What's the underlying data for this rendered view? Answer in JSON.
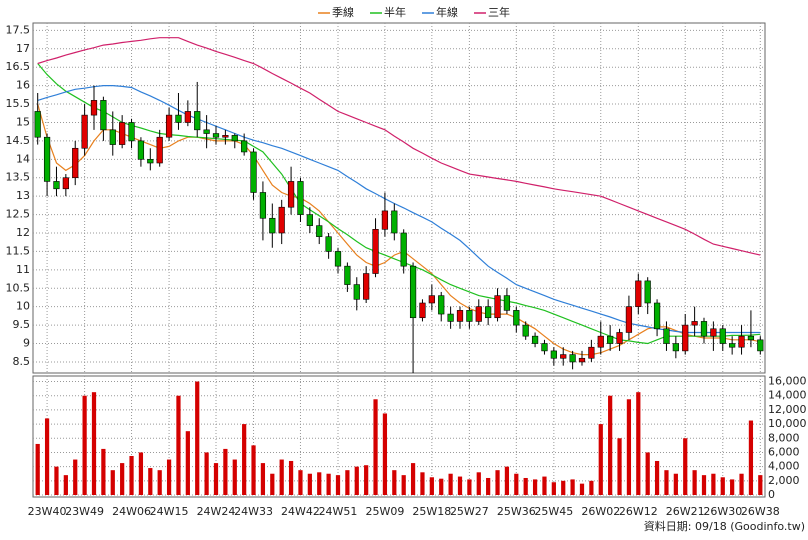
{
  "chart_data": {
    "type": "candlestick",
    "footer": "資料日期: 09/18 (Goodinfo.tw)",
    "categories": [
      null,
      "23W40",
      null,
      null,
      null,
      "23W49",
      null,
      null,
      null,
      null,
      "24W06",
      null,
      null,
      null,
      "24W15",
      null,
      null,
      null,
      null,
      "24W24",
      null,
      null,
      null,
      "24W33",
      null,
      null,
      null,
      null,
      "24W42",
      null,
      null,
      null,
      "24W51",
      null,
      null,
      null,
      null,
      "25W09",
      null,
      null,
      null,
      null,
      "25W18",
      null,
      null,
      null,
      "25W27",
      null,
      null,
      null,
      null,
      "25W36",
      null,
      null,
      null,
      "25W45",
      null,
      null,
      null,
      null,
      "26W02",
      null,
      null,
      null,
      "26W12",
      null,
      null,
      null,
      null,
      "26W21",
      null,
      null,
      null,
      "26W30",
      null,
      null,
      null,
      "26W38"
    ],
    "candles": [
      [
        15.3,
        15.8,
        14.4,
        14.6
      ],
      [
        14.6,
        14.7,
        13.0,
        13.4
      ],
      [
        13.4,
        13.8,
        13.0,
        13.2
      ],
      [
        13.2,
        13.6,
        13.0,
        13.5
      ],
      [
        13.5,
        14.5,
        13.3,
        14.3
      ],
      [
        14.3,
        15.5,
        14.1,
        15.2
      ],
      [
        15.2,
        16.0,
        14.8,
        15.6
      ],
      [
        15.6,
        15.7,
        14.5,
        14.8
      ],
      [
        14.8,
        15.3,
        14.1,
        14.4
      ],
      [
        14.4,
        15.2,
        14.3,
        15.0
      ],
      [
        15.0,
        15.1,
        14.3,
        14.5
      ],
      [
        14.5,
        14.6,
        13.8,
        14.0
      ],
      [
        14.0,
        14.3,
        13.7,
        13.9
      ],
      [
        13.9,
        14.8,
        13.8,
        14.6
      ],
      [
        14.6,
        15.4,
        14.5,
        15.2
      ],
      [
        15.2,
        15.8,
        14.8,
        15.0
      ],
      [
        15.0,
        15.6,
        14.9,
        15.3
      ],
      [
        15.3,
        16.1,
        14.6,
        14.8
      ],
      [
        14.8,
        15.2,
        14.3,
        14.7
      ],
      [
        14.7,
        14.9,
        14.4,
        14.6
      ],
      [
        14.6,
        14.8,
        14.4,
        14.65
      ],
      [
        14.65,
        14.7,
        14.3,
        14.5
      ],
      [
        14.5,
        14.7,
        14.1,
        14.2
      ],
      [
        14.2,
        14.3,
        12.9,
        13.1
      ],
      [
        13.1,
        13.4,
        11.8,
        12.4
      ],
      [
        12.4,
        12.8,
        11.6,
        12.0
      ],
      [
        12.0,
        12.9,
        11.7,
        12.7
      ],
      [
        12.7,
        13.8,
        12.5,
        13.4
      ],
      [
        13.4,
        13.5,
        12.3,
        12.5
      ],
      [
        12.5,
        12.7,
        12.0,
        12.2
      ],
      [
        12.2,
        12.4,
        11.7,
        11.9
      ],
      [
        11.9,
        12.0,
        11.3,
        11.5
      ],
      [
        11.5,
        11.6,
        10.9,
        11.1
      ],
      [
        11.1,
        11.2,
        10.4,
        10.6
      ],
      [
        10.6,
        10.8,
        9.9,
        10.2
      ],
      [
        10.2,
        11.1,
        10.1,
        10.9
      ],
      [
        10.9,
        12.4,
        10.8,
        12.1
      ],
      [
        12.1,
        13.1,
        11.9,
        12.6
      ],
      [
        12.6,
        12.8,
        11.8,
        12.0
      ],
      [
        12.0,
        12.1,
        10.9,
        11.1
      ],
      [
        11.1,
        11.2,
        8.2,
        9.7
      ],
      [
        9.7,
        10.2,
        9.6,
        10.1
      ],
      [
        10.1,
        10.6,
        9.9,
        10.3
      ],
      [
        10.3,
        10.4,
        9.6,
        9.8
      ],
      [
        9.8,
        10.0,
        9.4,
        9.6
      ],
      [
        9.6,
        10.0,
        9.4,
        9.9
      ],
      [
        9.9,
        10.0,
        9.4,
        9.6
      ],
      [
        9.6,
        10.2,
        9.5,
        10.0
      ],
      [
        10.0,
        10.2,
        9.5,
        9.7
      ],
      [
        9.7,
        10.5,
        9.6,
        10.3
      ],
      [
        10.3,
        10.5,
        9.8,
        9.9
      ],
      [
        9.9,
        10.0,
        9.3,
        9.5
      ],
      [
        9.5,
        9.6,
        9.1,
        9.2
      ],
      [
        9.2,
        9.3,
        8.9,
        9.0
      ],
      [
        9.0,
        9.1,
        8.7,
        8.8
      ],
      [
        8.8,
        8.9,
        8.4,
        8.6
      ],
      [
        8.6,
        8.9,
        8.4,
        8.7
      ],
      [
        8.7,
        8.8,
        8.3,
        8.5
      ],
      [
        8.5,
        8.8,
        8.4,
        8.6
      ],
      [
        8.6,
        9.1,
        8.5,
        8.9
      ],
      [
        8.9,
        9.6,
        8.7,
        9.2
      ],
      [
        9.2,
        9.5,
        8.8,
        9.0
      ],
      [
        9.0,
        9.4,
        8.8,
        9.3
      ],
      [
        9.3,
        10.3,
        9.1,
        10.0
      ],
      [
        10.0,
        10.9,
        9.8,
        10.7
      ],
      [
        10.7,
        10.8,
        9.8,
        10.1
      ],
      [
        10.1,
        10.2,
        9.2,
        9.4
      ],
      [
        9.4,
        9.6,
        8.8,
        9.0
      ],
      [
        9.0,
        9.2,
        8.6,
        8.8
      ],
      [
        8.8,
        9.8,
        8.7,
        9.5
      ],
      [
        9.5,
        10.0,
        9.2,
        9.6
      ],
      [
        9.6,
        9.7,
        9.0,
        9.2
      ],
      [
        9.2,
        9.6,
        8.8,
        9.4
      ],
      [
        9.4,
        9.5,
        8.8,
        9.0
      ],
      [
        9.0,
        9.2,
        8.7,
        8.9
      ],
      [
        8.9,
        9.5,
        8.7,
        9.2
      ],
      [
        9.2,
        9.9,
        8.9,
        9.1
      ],
      [
        9.1,
        9.2,
        8.7,
        8.8
      ]
    ],
    "up_color": "#e00000",
    "down_color": "#00b000",
    "series": [
      {
        "name": "季線",
        "color": "#e8801e",
        "values": [
          15.5,
          14.6,
          13.9,
          13.7,
          13.85,
          14.1,
          14.5,
          14.8,
          14.8,
          14.7,
          14.6,
          14.5,
          14.4,
          14.3,
          14.35,
          14.5,
          14.6,
          14.6,
          14.55,
          14.5,
          14.5,
          14.5,
          14.4,
          14.1,
          13.7,
          13.3,
          13.1,
          13.0,
          12.95,
          12.8,
          12.6,
          12.3,
          12.0,
          11.7,
          11.4,
          11.2,
          11.1,
          11.2,
          11.4,
          11.5,
          11.3,
          11.1,
          10.9,
          10.6,
          10.3,
          10.1,
          9.95,
          9.85,
          9.8,
          9.8,
          9.8,
          9.7,
          9.55,
          9.4,
          9.2,
          9.0,
          8.85,
          8.75,
          8.7,
          8.7,
          8.75,
          8.85,
          8.95,
          9.1,
          9.25,
          9.4,
          9.45,
          9.45,
          9.35,
          9.25,
          9.2,
          9.15,
          9.15,
          9.15,
          9.1,
          9.1,
          9.1,
          9.05
        ]
      },
      {
        "name": "半年",
        "color": "#20c020",
        "values": [
          16.6,
          16.3,
          16.05,
          15.85,
          15.7,
          15.55,
          15.4,
          15.3,
          15.15,
          15.0,
          14.92,
          14.85,
          14.77,
          14.7,
          14.67,
          14.65,
          14.62,
          14.6,
          14.58,
          14.56,
          14.54,
          14.52,
          14.5,
          14.35,
          14.2,
          13.9,
          13.6,
          13.2,
          12.8,
          12.63,
          12.47,
          12.3,
          12.12,
          11.95,
          11.77,
          11.6,
          11.5,
          11.4,
          11.3,
          11.2,
          11.1,
          11.0,
          10.87,
          10.73,
          10.6,
          10.5,
          10.4,
          10.3,
          10.25,
          10.2,
          10.15,
          10.1,
          10.03,
          9.97,
          9.9,
          9.8,
          9.7,
          9.6,
          9.5,
          9.4,
          9.3,
          9.2,
          9.1,
          9.07,
          9.03,
          9.0,
          9.1,
          9.2,
          9.2,
          9.2,
          9.2,
          9.2,
          9.2,
          9.2,
          9.22,
          9.22,
          9.23,
          9.25
        ]
      },
      {
        "name": "年線",
        "color": "#2f7fd8",
        "values": [
          15.6,
          15.68,
          15.75,
          15.83,
          15.9,
          15.93,
          15.97,
          16.0,
          16.0,
          15.98,
          15.95,
          15.83,
          15.72,
          15.6,
          15.47,
          15.33,
          15.2,
          15.1,
          15.0,
          14.9,
          14.8,
          14.7,
          14.6,
          14.52,
          14.45,
          14.37,
          14.3,
          14.2,
          14.1,
          14.0,
          13.9,
          13.8,
          13.7,
          13.53,
          13.37,
          13.2,
          13.07,
          12.93,
          12.8,
          12.68,
          12.55,
          12.43,
          12.3,
          12.13,
          11.97,
          11.8,
          11.57,
          11.33,
          11.1,
          10.93,
          10.77,
          10.6,
          10.5,
          10.4,
          10.3,
          10.2,
          10.12,
          10.04,
          9.96,
          9.88,
          9.8,
          9.72,
          9.63,
          9.55,
          9.5,
          9.45,
          9.4,
          9.37,
          9.33,
          9.3,
          9.3,
          9.3,
          9.3,
          9.3,
          9.3,
          9.3,
          9.3,
          9.3
        ]
      },
      {
        "name": "三年",
        "color": "#d0206a",
        "values": [
          16.6,
          16.68,
          16.75,
          16.83,
          16.9,
          16.97,
          17.03,
          17.1,
          17.13,
          17.17,
          17.2,
          17.23,
          17.27,
          17.3,
          17.3,
          17.3,
          17.2,
          17.1,
          17.02,
          16.93,
          16.85,
          16.77,
          16.68,
          16.6,
          16.47,
          16.33,
          16.2,
          16.07,
          15.93,
          15.8,
          15.63,
          15.47,
          15.3,
          15.2,
          15.1,
          15.0,
          14.9,
          14.8,
          14.63,
          14.47,
          14.3,
          14.17,
          14.03,
          13.9,
          13.8,
          13.7,
          13.6,
          13.56,
          13.52,
          13.48,
          13.44,
          13.4,
          13.35,
          13.3,
          13.25,
          13.2,
          13.16,
          13.12,
          13.08,
          13.04,
          13.0,
          12.9,
          12.8,
          12.7,
          12.6,
          12.5,
          12.4,
          12.3,
          12.2,
          12.1,
          11.97,
          11.83,
          11.7,
          11.64,
          11.58,
          11.52,
          11.46,
          11.4
        ]
      }
    ],
    "ylim": [
      8.2,
      17.7
    ],
    "yticks": [
      8.5,
      9,
      9.5,
      10,
      10.5,
      11,
      11.5,
      12,
      12.5,
      13,
      13.5,
      14,
      14.5,
      15,
      15.5,
      16,
      16.5,
      17,
      17.5
    ],
    "volume_values": [
      7200,
      10800,
      4000,
      2800,
      5000,
      14000,
      14500,
      6500,
      3500,
      4500,
      5500,
      6000,
      3800,
      3500,
      5000,
      14000,
      9000,
      16000,
      6000,
      4500,
      6500,
      5000,
      10000,
      7000,
      4500,
      3000,
      5000,
      4800,
      3500,
      3000,
      3200,
      3000,
      2800,
      3500,
      4000,
      4200,
      13500,
      11500,
      3500,
      2800,
      4500,
      3200,
      2500,
      2300,
      3000,
      2600,
      2200,
      3200,
      2400,
      3500,
      4000,
      3000,
      2400,
      2200,
      2600,
      1800,
      2000,
      2200,
      1600,
      2000,
      10000,
      14000,
      8000,
      13500,
      14500,
      6000,
      4800,
      3500,
      3000,
      8000,
      3500,
      2800,
      3000,
      2500,
      2200,
      3000,
      10500,
      2800
    ],
    "volume_color": "#d40000",
    "volume_ylim": [
      0,
      16500
    ],
    "volume_yticks": [
      0,
      {
        "value": 2000,
        "label": "2,000"
      },
      {
        "value": 4000,
        "label": "4,000"
      },
      {
        "value": 6000,
        "label": "6,000"
      },
      {
        "value": 8000,
        "label": "8,000"
      },
      {
        "value": 10000,
        "label": "10,000"
      },
      {
        "value": 12000,
        "label": "12,000"
      },
      {
        "value": 14000,
        "label": "14,000"
      },
      {
        "value": 16000,
        "label": "16,000"
      }
    ],
    "grid": true
  }
}
